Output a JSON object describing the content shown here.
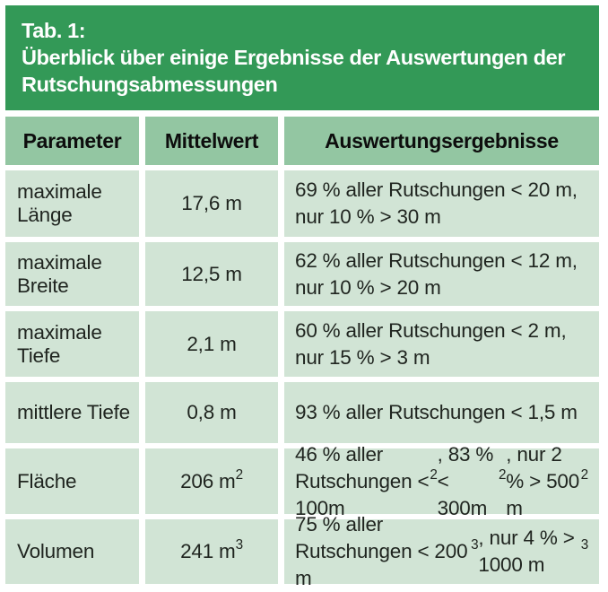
{
  "colors": {
    "title_bg": "#339957",
    "title_text": "#ffffff",
    "header_bg": "#93c6a2",
    "cell_bg": "#d1e4d5",
    "text": "#1f241f",
    "page_bg": "#ffffff"
  },
  "caption": {
    "label": "Tab. 1:",
    "title": "Überblick über einige Ergebnisse der Auswertungen der Rutschungsabmessungen"
  },
  "table": {
    "columns": [
      "Parameter",
      "Mittelwert",
      "Auswertungsergebnisse"
    ],
    "rows": [
      {
        "parameter": "maximale Länge",
        "mittelwert": "17,6 m",
        "ergebnisse": "69 % aller Rutschungen < 20 m, nur 10 % > 30 m"
      },
      {
        "parameter": "maximale Breite",
        "mittelwert": "12,5 m",
        "ergebnisse": "62 % aller Rutschungen < 12 m, nur 10 % > 20 m"
      },
      {
        "parameter": "maximale Tiefe",
        "mittelwert": "2,1 m",
        "ergebnisse": "60 % aller Rutschungen < 2 m, nur 15 % > 3 m"
      },
      {
        "parameter": "mittlere Tiefe",
        "mittelwert": "0,8 m",
        "ergebnisse": "93 % aller Rutschungen < 1,5 m"
      },
      {
        "parameter": "Fläche",
        "mittelwert": "206 m²",
        "ergebnisse": "46 % aller Rutschungen < 100m², 83 % < 300m², nur 2 % > 500 m²"
      },
      {
        "parameter": "Volumen",
        "mittelwert": "241 m³",
        "ergebnisse": "75 % aller Rutschungen < 200 m³, nur 4 % > 1000 m³"
      }
    ]
  }
}
